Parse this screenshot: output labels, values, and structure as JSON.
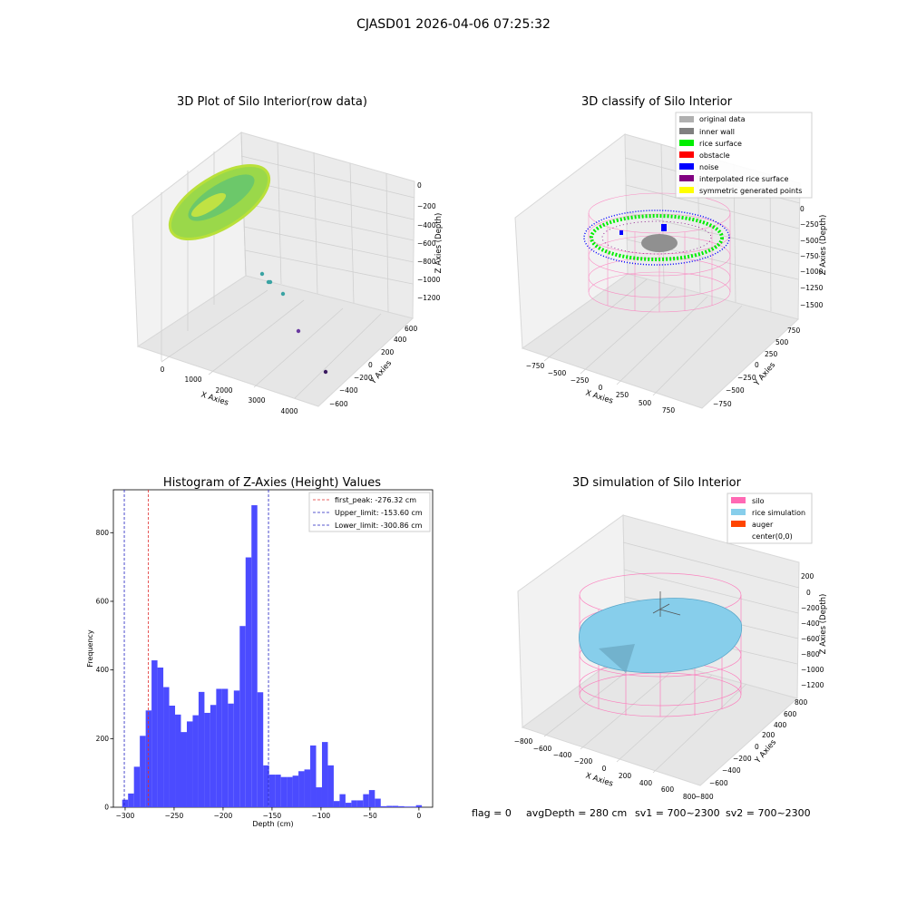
{
  "figure": {
    "suptitle": "CJASD01 2026-04-06 07:25:32",
    "footer": {
      "flag": "flag = 0",
      "avg_depth": "avgDepth = 280 cm",
      "sv1": "sv1 = 700~2300",
      "sv2": "sv2 = 700~2300"
    }
  },
  "colors": {
    "hist_bar": "#4b4bff",
    "first_peak": "#e03030",
    "limits": "#2020c0",
    "raw_surface": "#9ad84a",
    "raw_surface_hi": "#d6e83a",
    "raw_outlier": "#3aa3a3",
    "raw_outlier2": "#6a3aa0",
    "silo": "#ff69b4",
    "rice_sim": "#87ceeb",
    "auger": "#ff4500",
    "rice_surface": "#00ee00",
    "inner_wall": "#808080",
    "original": "#b0b0b0",
    "obstacle": "#ff0000",
    "noise": "#0000ff",
    "interpolated": "#800080",
    "symmetric": "#ffff00"
  },
  "panels": {
    "raw": {
      "title": "3D Plot of Silo Interior(row data)",
      "x_label": "X Axies",
      "y_label": "Y Axies",
      "z_label": "Z Axies (Depth)",
      "x_ticks": [
        "0",
        "1000",
        "2000",
        "3000",
        "4000"
      ],
      "y_ticks": [
        "600",
        "400",
        "200",
        "0",
        "−200",
        "−400",
        "−600"
      ],
      "z_ticks": [
        "0",
        "−200",
        "−400",
        "−600",
        "−800",
        "−1000",
        "−1200"
      ]
    },
    "classify": {
      "title": "3D classify of Silo Interior",
      "x_label": "X Axies",
      "y_label": "Y Axies",
      "z_label": "Z Axies (Depth)",
      "x_ticks": [
        "−750",
        "−500",
        "−250",
        "0",
        "250",
        "500",
        "750"
      ],
      "y_ticks": [
        "750",
        "500",
        "250",
        "0",
        "−250",
        "−500",
        "−750"
      ],
      "z_ticks": [
        "0",
        "−250",
        "−500",
        "−750",
        "−1000",
        "−1250",
        "−1500"
      ],
      "legend": [
        "original data",
        "inner wall",
        "rice surface",
        "obstacle",
        "noise",
        "interpolated rice surface",
        "symmetric generated points"
      ]
    },
    "simulation": {
      "title": "3D simulation of Silo Interior",
      "x_label": "X Axies",
      "y_label": "Y Axies",
      "z_label": "Z Axies (Depth)",
      "x_ticks": [
        "−800",
        "−600",
        "−400",
        "−200",
        "0",
        "200",
        "400",
        "600",
        "800"
      ],
      "y_ticks": [
        "800",
        "600",
        "400",
        "200",
        "0",
        "−200",
        "−400",
        "−600",
        "−800"
      ],
      "z_ticks": [
        "200",
        "0",
        "−200",
        "−400",
        "−600",
        "−800",
        "−1000",
        "−1200"
      ],
      "legend": [
        "silo",
        "rice simulation",
        "auger",
        "center(0,0)"
      ]
    }
  },
  "chart_data": {
    "type": "bar",
    "title": "Histogram of Z-Axies (Height) Values",
    "xlabel": "Depth (cm)",
    "ylabel": "Frequency",
    "xlim": [
      -312,
      14
    ],
    "ylim": [
      0,
      925
    ],
    "x_ticks": [
      -300,
      -250,
      -200,
      -150,
      -100,
      -50,
      0
    ],
    "x_tick_labels": [
      "−300",
      "−250",
      "−200",
      "−150",
      "−100",
      "−50",
      "0"
    ],
    "y_ticks": [
      0,
      200,
      400,
      600,
      800
    ],
    "bin_width": 6,
    "bins": [
      [
        -303,
        22
      ],
      [
        -297,
        40
      ],
      [
        -291,
        118
      ],
      [
        -285,
        208
      ],
      [
        -279,
        282
      ],
      [
        -273,
        428
      ],
      [
        -267,
        407
      ],
      [
        -261,
        350
      ],
      [
        -255,
        296
      ],
      [
        -249,
        270
      ],
      [
        -243,
        219
      ],
      [
        -237,
        250
      ],
      [
        -231,
        268
      ],
      [
        -225,
        336
      ],
      [
        -219,
        275
      ],
      [
        -213,
        298
      ],
      [
        -207,
        345
      ],
      [
        -201,
        345
      ],
      [
        -195,
        302
      ],
      [
        -189,
        340
      ],
      [
        -183,
        528
      ],
      [
        -177,
        728
      ],
      [
        -171,
        880
      ],
      [
        -165,
        335
      ],
      [
        -159,
        122
      ],
      [
        -153,
        95
      ],
      [
        -147,
        95
      ],
      [
        -141,
        88
      ],
      [
        -135,
        88
      ],
      [
        -129,
        92
      ],
      [
        -123,
        105
      ],
      [
        -117,
        110
      ],
      [
        -111,
        180
      ],
      [
        -105,
        58
      ],
      [
        -99,
        190
      ],
      [
        -93,
        122
      ],
      [
        -87,
        18
      ],
      [
        -81,
        38
      ],
      [
        -75,
        13
      ],
      [
        -69,
        20
      ],
      [
        -63,
        20
      ],
      [
        -57,
        38
      ],
      [
        -51,
        50
      ],
      [
        -45,
        25
      ],
      [
        -39,
        3
      ],
      [
        -33,
        4
      ],
      [
        -27,
        4
      ],
      [
        -21,
        3
      ],
      [
        -15,
        2
      ],
      [
        -9,
        2
      ],
      [
        -3,
        6
      ]
    ],
    "lines": [
      {
        "name": "first_peak: -276.32 cm",
        "x": -276.32,
        "color": "#e03030"
      },
      {
        "name": "Upper_limit: -153.60 cm",
        "x": -153.6,
        "color": "#2020c0"
      },
      {
        "name": "Lower_limit: -300.86 cm",
        "x": -300.86,
        "color": "#2020c0"
      }
    ],
    "legend_position": "top-right",
    "grid": false
  }
}
